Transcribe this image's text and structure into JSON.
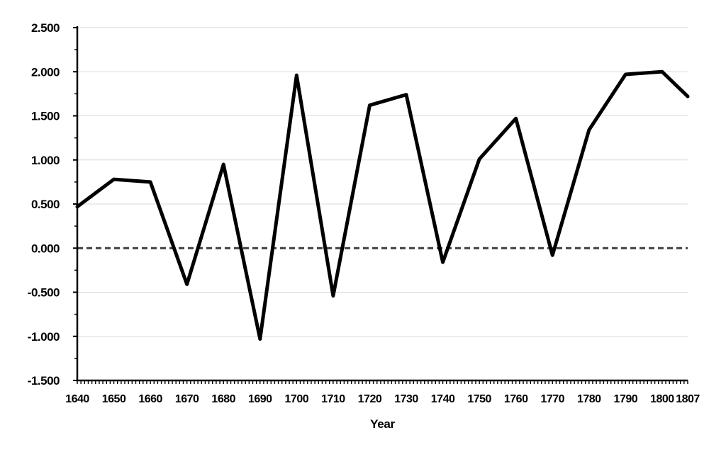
{
  "chart_data": {
    "type": "line",
    "title": "",
    "xlabel": "Year",
    "ylabel": "",
    "legend": "none",
    "grid": true,
    "x": [
      1640,
      1650,
      1660,
      1670,
      1680,
      1690,
      1700,
      1710,
      1720,
      1730,
      1740,
      1750,
      1760,
      1770,
      1780,
      1790,
      1800,
      1807
    ],
    "values": [
      0.47,
      0.78,
      0.75,
      -0.41,
      0.95,
      -1.03,
      1.96,
      -0.54,
      1.62,
      1.74,
      -0.16,
      1.01,
      1.47,
      -0.08,
      1.34,
      1.97,
      2.0,
      1.72
    ],
    "xlim": [
      1640,
      1807
    ],
    "ylim": [
      -1.5,
      2.5
    ],
    "y_ticks": [
      {
        "value": 2.5,
        "label": "2.500"
      },
      {
        "value": 2.0,
        "label": "2.000"
      },
      {
        "value": 1.5,
        "label": "1.500"
      },
      {
        "value": 1.0,
        "label": "1.000"
      },
      {
        "value": 0.5,
        "label": "0.500"
      },
      {
        "value": 0.0,
        "label": "0.000"
      },
      {
        "value": -0.5,
        "label": "-0.500"
      },
      {
        "value": -1.0,
        "label": "-1.000"
      },
      {
        "value": -1.5,
        "label": "-1.500"
      }
    ],
    "y_minor_tick_step": 0.25,
    "x_minor_tick_step": 1,
    "x_labeled_ticks": [
      {
        "value": 1640,
        "label": "1640"
      },
      {
        "value": 1650,
        "label": "1650"
      },
      {
        "value": 1660,
        "label": "1660"
      },
      {
        "value": 1670,
        "label": "1670"
      },
      {
        "value": 1680,
        "label": "1680"
      },
      {
        "value": 1690,
        "label": "1690"
      },
      {
        "value": 1700,
        "label": "1700"
      },
      {
        "value": 1710,
        "label": "1710"
      },
      {
        "value": 1720,
        "label": "1720"
      },
      {
        "value": 1730,
        "label": "1730"
      },
      {
        "value": 1740,
        "label": "1740"
      },
      {
        "value": 1750,
        "label": "1750"
      },
      {
        "value": 1760,
        "label": "1760"
      },
      {
        "value": 1770,
        "label": "1770"
      },
      {
        "value": 1780,
        "label": "1780"
      },
      {
        "value": 1790,
        "label": "1790"
      },
      {
        "value": 1800,
        "label": "1800"
      },
      {
        "value": 1807,
        "label": "1807"
      }
    ],
    "zero_line": {
      "value": 0,
      "style": "dashed"
    },
    "colors": {
      "line": "#000000",
      "grid": "#d9d9d9",
      "zero_line": "#3f3f3f",
      "axis": "#000000",
      "text": "#000000",
      "background": "#ffffff"
    }
  }
}
